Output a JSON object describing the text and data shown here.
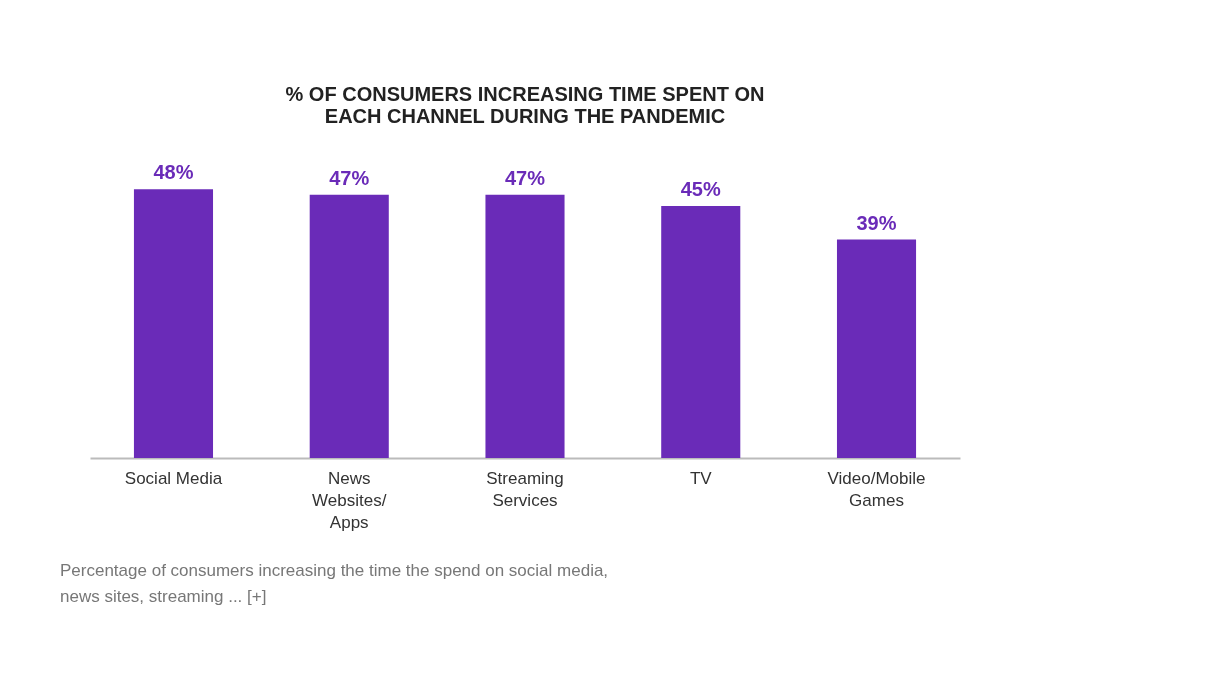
{
  "chart_data": {
    "type": "bar",
    "title": "% OF CONSUMERS INCREASING TIME SPENT ON\nEACH CHANNEL DURING THE PANDEMIC",
    "categories": [
      "Social Media",
      "News\nWebsites/\nApps",
      "Streaming\nServices",
      "TV",
      "Video/Mobile\nGames"
    ],
    "values": [
      48,
      47,
      47,
      45,
      39
    ],
    "value_labels": [
      "48%",
      "47%",
      "47%",
      "45%",
      "39%"
    ],
    "color": "#6a2bb8",
    "grid": false,
    "annotations": [
      "Percentage of consumers increasing the time the spend on social media,\nnews sites, streaming ... [+]"
    ]
  }
}
